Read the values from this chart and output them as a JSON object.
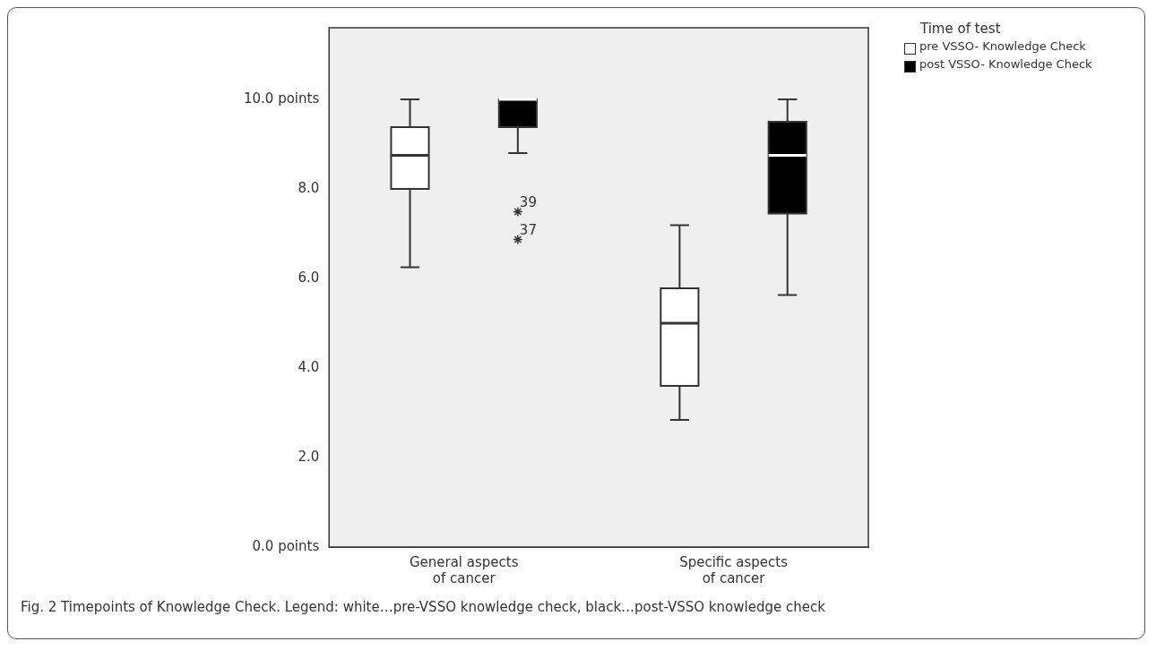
{
  "chart_data": {
    "type": "box",
    "legend_title": "Time of test",
    "legend": "top right",
    "grid": false,
    "categories": [
      "General aspects of cancer",
      "Specific aspects of cancer"
    ],
    "series": [
      {
        "name": "pre VSSO- Knowledge Check",
        "color": "#ffffff",
        "boxes": [
          {
            "low": 6.25,
            "q1": 8.0,
            "median": 8.75,
            "q3": 9.38,
            "high": 10.0
          },
          {
            "low": 2.84,
            "q1": 3.6,
            "median": 5.0,
            "q3": 5.78,
            "high": 7.19
          }
        ]
      },
      {
        "name": "post VSSO- Knowledge Check",
        "color": "#000000",
        "boxes": [
          {
            "low": 8.8,
            "q1": 9.38,
            "median": 10.0,
            "q3": 10.0,
            "high": 10.0,
            "outliers": [
              7.49,
              6.87
            ]
          },
          {
            "low": 5.63,
            "q1": 7.45,
            "median": 8.75,
            "q3": 9.5,
            "high": 10.0
          }
        ]
      }
    ],
    "ylim": [
      0,
      11.6
    ],
    "yticks": [
      {
        "value": 0,
        "label": "0.0 points"
      },
      {
        "value": 2,
        "label": "2.0"
      },
      {
        "value": 4,
        "label": "4.0"
      },
      {
        "value": 6,
        "label": "6.0"
      },
      {
        "value": 8,
        "label": "8.0"
      },
      {
        "value": 10,
        "label": "10.0 points"
      }
    ],
    "annotations": [
      "39",
      "37",
      "Fig. 2 Timepoints of Knowledge Check. Legend: white…pre-VSSO knowledge check, black…post-VSSO knowledge check"
    ]
  }
}
